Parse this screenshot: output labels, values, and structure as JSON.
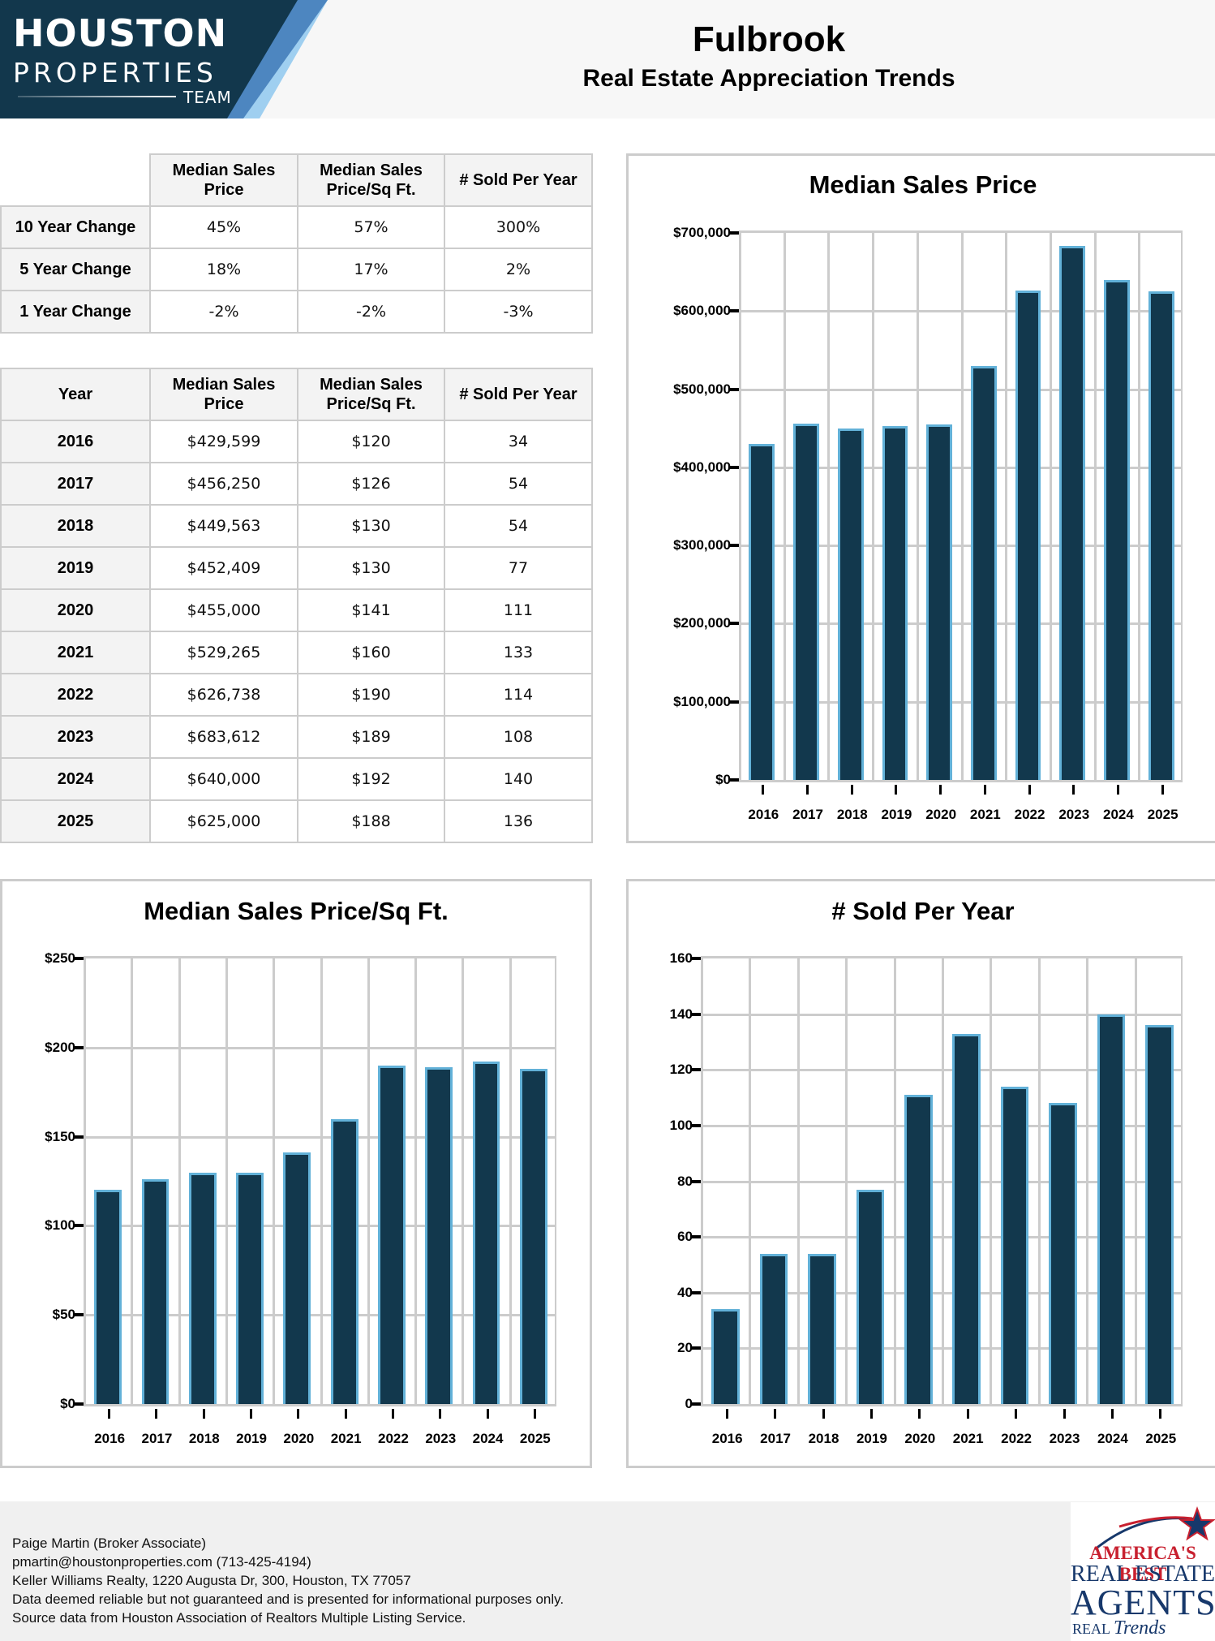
{
  "header": {
    "logo": {
      "line1": "HOUSTON",
      "line2": "PROPERTIES",
      "line3": "TEAM",
      "colors": {
        "navy": "#12374c",
        "mid_blue": "#4d86c0",
        "light_blue": "#9fcff0"
      }
    },
    "title": "Fulbrook",
    "subtitle": "Real Estate Appreciation Trends"
  },
  "change_table": {
    "columns": [
      "",
      "Median Sales Price",
      "Median Sales Price/Sq Ft.",
      "# Sold Per Year"
    ],
    "rows": [
      {
        "label": "10 Year Change",
        "price": "45%",
        "ppsf": "57%",
        "sold": "300%"
      },
      {
        "label": "5 Year Change",
        "price": "18%",
        "ppsf": "17%",
        "sold": "2%"
      },
      {
        "label": "1 Year Change",
        "price": "-2%",
        "ppsf": "-2%",
        "sold": "-3%"
      }
    ]
  },
  "year_table": {
    "columns": [
      "Year",
      "Median Sales Price",
      "Median Sales Price/Sq Ft.",
      "# Sold Per Year"
    ],
    "rows": [
      {
        "year": "2016",
        "price": "$429,599",
        "ppsf": "$120",
        "sold": "34"
      },
      {
        "year": "2017",
        "price": "$456,250",
        "ppsf": "$126",
        "sold": "54"
      },
      {
        "year": "2018",
        "price": "$449,563",
        "ppsf": "$130",
        "sold": "54"
      },
      {
        "year": "2019",
        "price": "$452,409",
        "ppsf": "$130",
        "sold": "77"
      },
      {
        "year": "2020",
        "price": "$455,000",
        "ppsf": "$141",
        "sold": "111"
      },
      {
        "year": "2021",
        "price": "$529,265",
        "ppsf": "$160",
        "sold": "133"
      },
      {
        "year": "2022",
        "price": "$626,738",
        "ppsf": "$190",
        "sold": "114"
      },
      {
        "year": "2023",
        "price": "$683,612",
        "ppsf": "$189",
        "sold": "108"
      },
      {
        "year": "2024",
        "price": "$640,000",
        "ppsf": "$192",
        "sold": "140"
      },
      {
        "year": "2025",
        "price": "$625,000",
        "ppsf": "$188",
        "sold": "136"
      }
    ]
  },
  "colors": {
    "bar_fill": "#12384d",
    "bar_border": "#62b1d8",
    "grid": "#cccccc",
    "header_bg": "#f7f7f7",
    "footer_bg": "#f0f0f0"
  },
  "chart_data": [
    {
      "id": "median-sales-price",
      "type": "bar",
      "title": "Median Sales Price",
      "xlabel": "",
      "ylabel": "",
      "categories": [
        "2016",
        "2017",
        "2018",
        "2019",
        "2020",
        "2021",
        "2022",
        "2023",
        "2024",
        "2025"
      ],
      "values": [
        429599,
        456250,
        449563,
        452409,
        455000,
        529265,
        626738,
        683612,
        640000,
        625000
      ],
      "ylim": [
        0,
        700000
      ],
      "yticks": [
        0,
        100000,
        200000,
        300000,
        400000,
        500000,
        600000,
        700000
      ],
      "ytick_labels": [
        "$0",
        "$100,000",
        "$200,000",
        "$300,000",
        "$400,000",
        "$500,000",
        "$600,000",
        "$700,000"
      ],
      "grid": true,
      "legend": false
    },
    {
      "id": "median-price-per-sqft",
      "type": "bar",
      "title": "Median Sales Price/Sq Ft.",
      "xlabel": "",
      "ylabel": "",
      "categories": [
        "2016",
        "2017",
        "2018",
        "2019",
        "2020",
        "2021",
        "2022",
        "2023",
        "2024",
        "2025"
      ],
      "values": [
        120,
        126,
        130,
        130,
        141,
        160,
        190,
        189,
        192,
        188
      ],
      "ylim": [
        0,
        250
      ],
      "yticks": [
        0,
        50,
        100,
        150,
        200,
        250
      ],
      "ytick_labels": [
        "$0",
        "$50",
        "$100",
        "$150",
        "$200",
        "$250"
      ],
      "grid": true,
      "legend": false
    },
    {
      "id": "sold-per-year",
      "type": "bar",
      "title": "# Sold Per Year",
      "xlabel": "",
      "ylabel": "",
      "categories": [
        "2016",
        "2017",
        "2018",
        "2019",
        "2020",
        "2021",
        "2022",
        "2023",
        "2024",
        "2025"
      ],
      "values": [
        34,
        54,
        54,
        77,
        111,
        133,
        114,
        108,
        140,
        136
      ],
      "ylim": [
        0,
        160
      ],
      "yticks": [
        0,
        20,
        40,
        60,
        80,
        100,
        120,
        140,
        160
      ],
      "ytick_labels": [
        "0",
        "20",
        "40",
        "60",
        "80",
        "100",
        "120",
        "140",
        "160"
      ],
      "grid": true,
      "legend": false
    }
  ],
  "footer": {
    "lines": [
      "Paige Martin (Broker Associate)",
      "pmartin@houstonproperties.com (713-425-4194)",
      "Keller Williams Realty, 1220 Augusta Dr, 300, Houston, TX 77057",
      "Data deemed reliable but not guaranteed and is presented for informational purposes only.",
      "Source data from Houston Association of Realtors Multiple Listing Service."
    ],
    "award": {
      "line1": "AMERICA'S BEST",
      "line2": "REAL ESTATE",
      "line3": "AGENTS",
      "line4a": "REAL",
      "line4b": "Trends",
      "colors": {
        "red": "#c8202f",
        "navy": "#17386b"
      }
    }
  }
}
